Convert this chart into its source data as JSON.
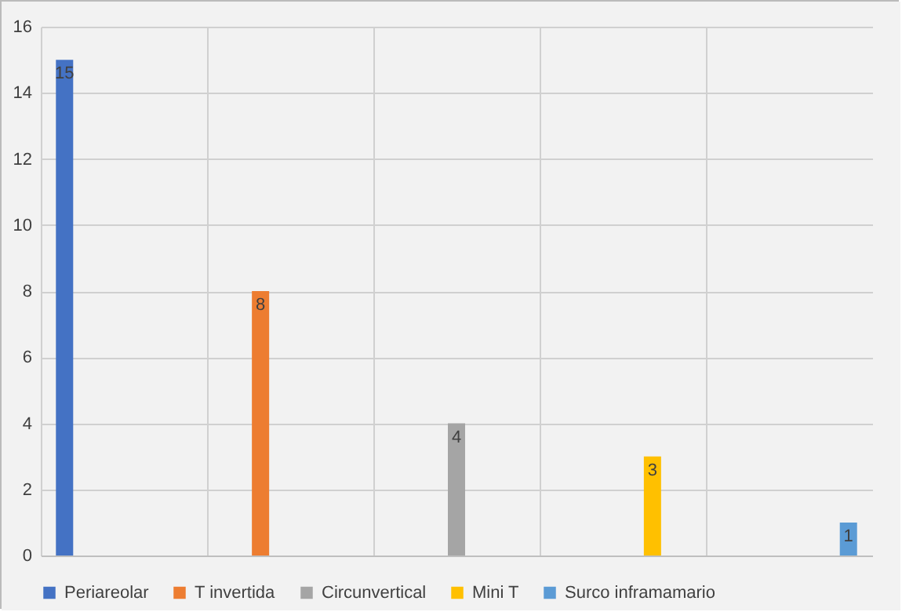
{
  "chart_data": {
    "type": "bar",
    "categories": [
      null,
      null,
      null,
      null,
      null
    ],
    "series": [
      {
        "name": "Periareolar",
        "color": "#4472c4",
        "values": [
          15,
          null,
          null,
          null,
          null
        ]
      },
      {
        "name": "T invertida",
        "color": "#ed7d31",
        "values": [
          null,
          8,
          null,
          null,
          null
        ]
      },
      {
        "name": "Circunvertical",
        "color": "#a5a5a5",
        "values": [
          null,
          null,
          4,
          null,
          null
        ]
      },
      {
        "name": "Mini T",
        "color": "#ffc000",
        "values": [
          null,
          null,
          null,
          3,
          null
        ]
      },
      {
        "name": "Surco inframamario",
        "color": "#5b9bd5",
        "values": [
          null,
          null,
          null,
          null,
          1
        ]
      }
    ],
    "ylim": [
      0,
      16
    ],
    "yticks": [
      0,
      2,
      4,
      6,
      8,
      10,
      12,
      14,
      16
    ],
    "grid": true,
    "legend": "bottom",
    "data_labels": true,
    "tick_labels": "y"
  }
}
